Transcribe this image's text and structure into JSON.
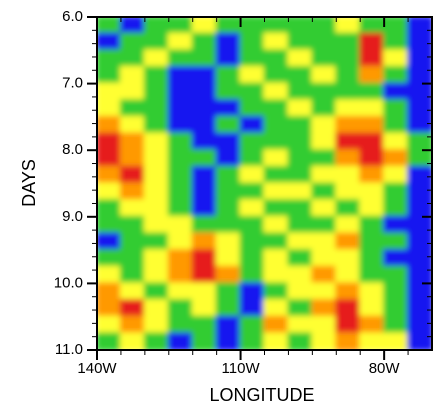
{
  "chart_data": {
    "type": "contour",
    "xlabel": "LONGITUDE",
    "ylabel": "DAYS",
    "xlim": [
      -140,
      -70
    ],
    "ylim": [
      6,
      11
    ],
    "y_inverted": true,
    "xticks": [
      {
        "value": -140,
        "label": "140W"
      },
      {
        "value": -110,
        "label": "110W"
      },
      {
        "value": -80,
        "label": "80W"
      }
    ],
    "yticks": [
      {
        "value": 6,
        "label": "6.0"
      },
      {
        "value": 7,
        "label": "7.0"
      },
      {
        "value": 8,
        "label": "8.0"
      },
      {
        "value": 9,
        "label": "9.0"
      },
      {
        "value": 10,
        "label": "10.0"
      },
      {
        "value": 11,
        "label": "11.0"
      }
    ],
    "xminorticks": [
      -135,
      -130,
      -125,
      -120,
      -115,
      -105,
      -100,
      -95,
      -90,
      -85,
      -75
    ],
    "yminorticks": [
      6.2,
      6.4,
      6.6,
      6.8,
      7.2,
      7.4,
      7.6,
      7.8,
      8.2,
      8.4,
      8.6,
      8.8,
      9.2,
      9.4,
      9.6,
      9.8,
      10.2,
      10.4,
      10.6,
      10.8
    ],
    "colors": [
      "#1414f0",
      "#33cc33",
      "#ffff33",
      "#ff9900",
      "#e61e1e"
    ],
    "x": [
      -137.5,
      -132.5,
      -127.5,
      -122.5,
      -117.5,
      -112.5,
      -107.5,
      -102.5,
      -97.5,
      -92.5,
      -87.5,
      -82.5,
      -77.5,
      -72.5
    ],
    "y": [
      6.125,
      6.375,
      6.625,
      6.875,
      7.125,
      7.375,
      7.625,
      7.875,
      8.125,
      8.375,
      8.625,
      8.875,
      9.125,
      9.375,
      9.625,
      9.875,
      10.125,
      10.375,
      10.625,
      10.875
    ],
    "z": [
      [
        1,
        0,
        1,
        1,
        2,
        1,
        1,
        1,
        1,
        1,
        2,
        1,
        1,
        0
      ],
      [
        0,
        1,
        1,
        2,
        1,
        0,
        1,
        2,
        1,
        1,
        1,
        4,
        1,
        0
      ],
      [
        1,
        1,
        2,
        1,
        1,
        0,
        1,
        1,
        2,
        1,
        1,
        4,
        2,
        0
      ],
      [
        1,
        2,
        1,
        0,
        0,
        1,
        2,
        1,
        1,
        2,
        1,
        3,
        1,
        0
      ],
      [
        2,
        2,
        1,
        0,
        0,
        1,
        1,
        2,
        1,
        1,
        1,
        1,
        0,
        0
      ],
      [
        2,
        1,
        1,
        0,
        0,
        0,
        1,
        1,
        2,
        1,
        2,
        2,
        1,
        0
      ],
      [
        3,
        2,
        1,
        0,
        0,
        1,
        0,
        1,
        1,
        2,
        3,
        3,
        1,
        0
      ],
      [
        4,
        3,
        2,
        1,
        0,
        0,
        1,
        1,
        1,
        2,
        4,
        4,
        2,
        1
      ],
      [
        4,
        3,
        2,
        1,
        1,
        0,
        1,
        2,
        1,
        1,
        3,
        4,
        3,
        1
      ],
      [
        3,
        4,
        2,
        1,
        0,
        1,
        2,
        1,
        1,
        2,
        2,
        3,
        2,
        0
      ],
      [
        2,
        3,
        2,
        1,
        0,
        1,
        1,
        2,
        2,
        1,
        2,
        2,
        1,
        0
      ],
      [
        1,
        2,
        2,
        1,
        0,
        1,
        2,
        1,
        1,
        2,
        1,
        2,
        1,
        0
      ],
      [
        1,
        1,
        2,
        2,
        1,
        1,
        1,
        2,
        1,
        1,
        2,
        1,
        0,
        0
      ],
      [
        0,
        1,
        1,
        2,
        3,
        2,
        1,
        1,
        2,
        2,
        3,
        1,
        1,
        0
      ],
      [
        1,
        1,
        2,
        3,
        4,
        2,
        1,
        2,
        1,
        2,
        2,
        1,
        0,
        0
      ],
      [
        2,
        1,
        2,
        3,
        4,
        3,
        1,
        2,
        2,
        3,
        2,
        1,
        1,
        0
      ],
      [
        3,
        2,
        1,
        2,
        2,
        1,
        0,
        1,
        2,
        2,
        3,
        2,
        1,
        0
      ],
      [
        3,
        4,
        2,
        1,
        2,
        1,
        0,
        2,
        1,
        3,
        4,
        2,
        1,
        0
      ],
      [
        2,
        3,
        2,
        1,
        1,
        0,
        1,
        3,
        2,
        2,
        4,
        3,
        1,
        0
      ],
      [
        1,
        2,
        1,
        0,
        1,
        0,
        1,
        2,
        1,
        2,
        3,
        2,
        2,
        0
      ]
    ]
  }
}
